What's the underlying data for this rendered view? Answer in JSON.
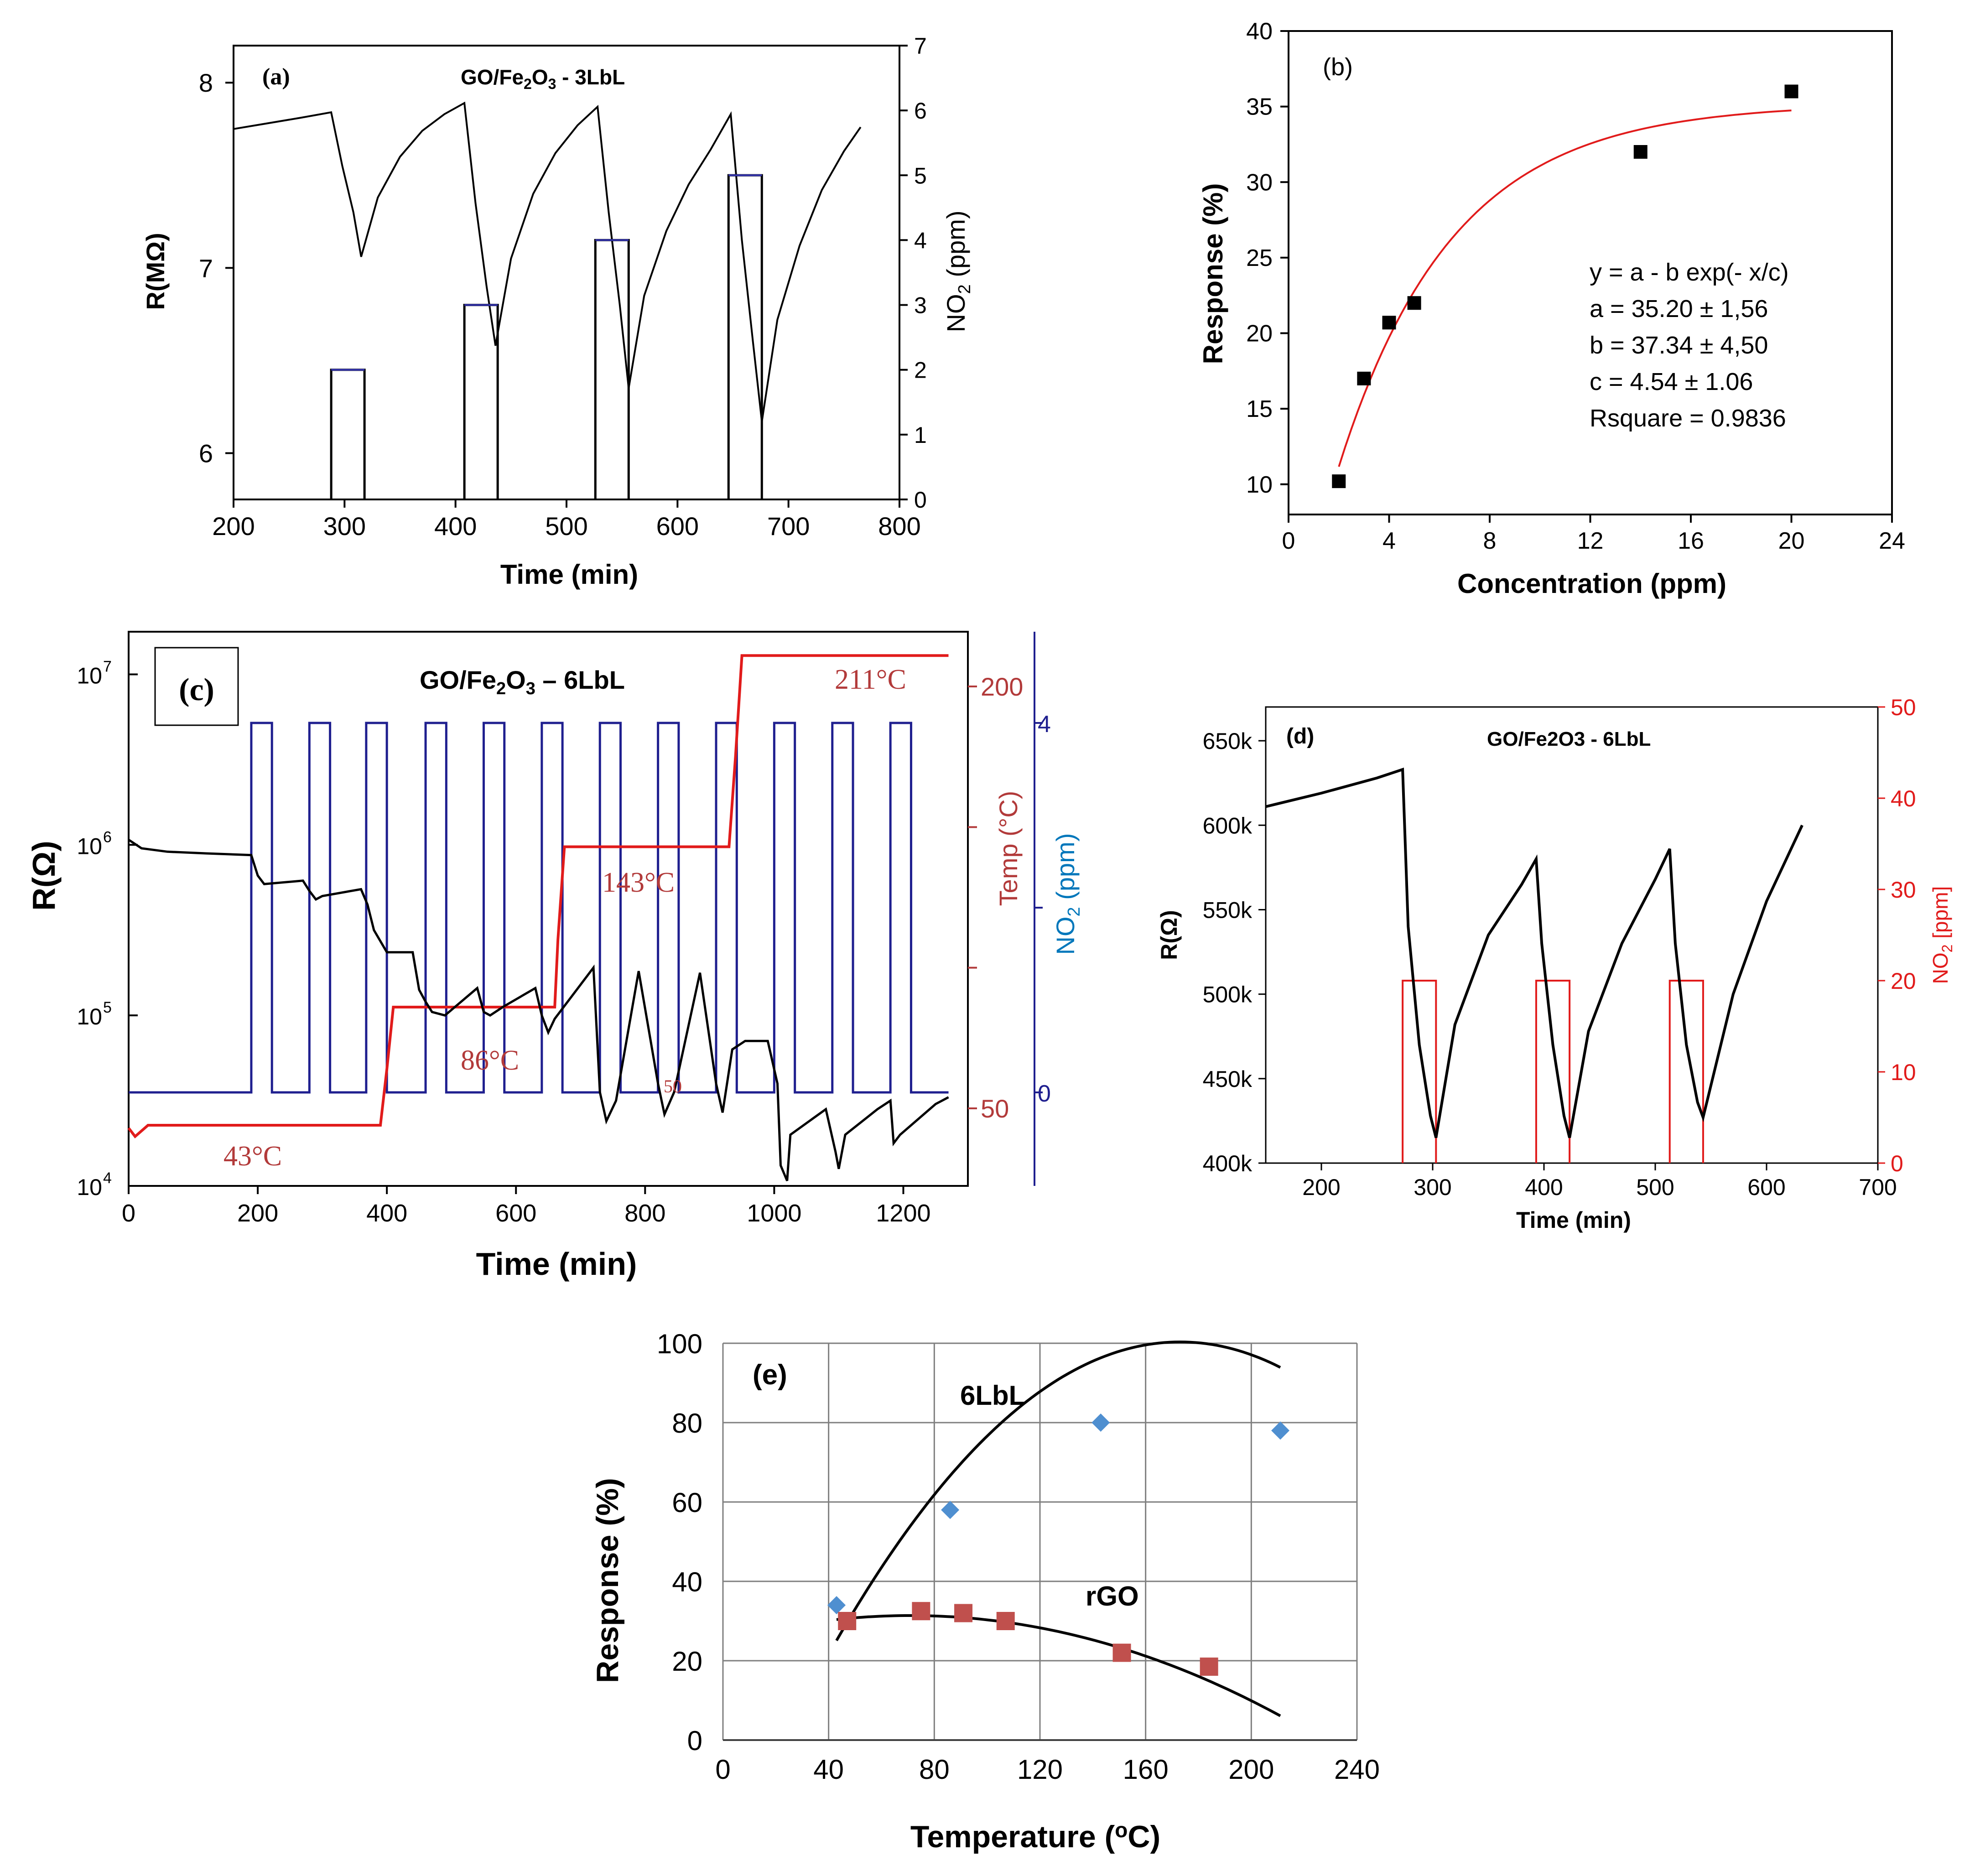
{
  "colors": {
    "black": "#000000",
    "red": "#e11b1b",
    "navy": "#1f1f8f",
    "cyan": "#0077bb",
    "marron": "#b23a3a",
    "grid": "#7f7f7f",
    "blue_marker": "#4f8fd0",
    "red_marker": "#c0504d"
  },
  "chart_data": [
    {
      "id": "a",
      "type": "line",
      "panel_label": "(a)",
      "title": "GO/Fe2O3 - 3LbL",
      "xlabel": "Time (min)",
      "ylabel": "R(MΩ)",
      "y2label": "NO2 (ppm)",
      "xlim": [
        200,
        800
      ],
      "ylim": [
        5.75,
        8.2
      ],
      "y2lim": [
        0,
        7
      ],
      "xticks": [
        "200",
        "300",
        "400",
        "500",
        "600",
        "700",
        "800"
      ],
      "yticks": [
        "6",
        "7",
        "8"
      ],
      "y2ticks": [
        "0",
        "1",
        "2",
        "3",
        "4",
        "5",
        "6",
        "7"
      ],
      "series": [
        {
          "name": "Resistance",
          "axis": "left",
          "x": [
            200,
            230,
            260,
            288,
            298,
            308,
            315,
            330,
            350,
            370,
            390,
            408,
            418,
            428,
            436,
            450,
            470,
            490,
            510,
            528,
            538,
            548,
            556,
            570,
            590,
            610,
            630,
            648,
            658,
            668,
            676,
            690,
            710,
            730,
            750,
            765
          ],
          "y": [
            7.75,
            7.78,
            7.81,
            7.84,
            7.55,
            7.3,
            7.06,
            7.38,
            7.6,
            7.74,
            7.83,
            7.89,
            7.35,
            6.9,
            6.58,
            7.05,
            7.4,
            7.62,
            7.77,
            7.87,
            7.3,
            6.8,
            6.35,
            6.85,
            7.2,
            7.45,
            7.64,
            7.83,
            7.15,
            6.6,
            6.17,
            6.72,
            7.12,
            7.42,
            7.63,
            7.76
          ]
        },
        {
          "name": "NO2 pulses",
          "axis": "right",
          "pulses": [
            {
              "start": 288,
              "end": 318,
              "ppm": 2
            },
            {
              "start": 408,
              "end": 438,
              "ppm": 3
            },
            {
              "start": 526,
              "end": 556,
              "ppm": 4
            },
            {
              "start": 646,
              "end": 676,
              "ppm": 5
            }
          ]
        }
      ]
    },
    {
      "id": "b",
      "type": "scatter",
      "panel_label": "(b)",
      "xlabel": "Concentration (ppm)",
      "ylabel": "Response (%)",
      "xlim": [
        0,
        24
      ],
      "ylim": [
        8,
        40
      ],
      "xticks": [
        "0",
        "4",
        "8",
        "12",
        "16",
        "20",
        "24"
      ],
      "yticks": [
        "10",
        "15",
        "20",
        "25",
        "30",
        "35",
        "40"
      ],
      "x": [
        2,
        3,
        4,
        5,
        14,
        20
      ],
      "y": [
        10.2,
        17,
        20.7,
        22,
        32,
        36
      ],
      "fit": {
        "equation": "y = a - b exp(- x/c)",
        "a": 35.2,
        "b": 37.34,
        "c": 4.54,
        "x_range": [
          2,
          20
        ]
      },
      "annotations": [
        "y = a - b exp(- x/c)",
        "a = 35.20 ± 1,56",
        "b = 37.34 ± 4,50",
        "c = 4.54 ± 1.06",
        "Rsquare = 0.9836"
      ]
    },
    {
      "id": "c",
      "type": "line",
      "panel_label": "(c)",
      "title": "GO/Fe2O3 – 6LbL",
      "xlabel": "Time (min)",
      "ylabel": "R(Ω)",
      "y2label": "Temp (°C)",
      "y3label": "NO2 (ppm)",
      "xlim": [
        0,
        1300
      ],
      "ylim_log10": [
        4,
        7.25
      ],
      "xticks": [
        "0",
        "200",
        "400",
        "600",
        "800",
        "1000",
        "1200"
      ],
      "yticks": [
        {
          "base": "10",
          "exp": "4"
        },
        {
          "base": "10",
          "exp": "5"
        },
        {
          "base": "10",
          "exp": "6"
        },
        {
          "base": "10",
          "exp": "7"
        }
      ],
      "temp_ticks": [
        "50",
        "200"
      ],
      "no2_ticks": [
        "0",
        "4"
      ],
      "temp_labels": [
        "43°C",
        "86°C",
        "143°C",
        "211°C"
      ],
      "stray_label": "50",
      "resistance_log10": {
        "x": [
          0,
          20,
          60,
          120,
          190,
          200,
          210,
          270,
          280,
          290,
          300,
          360,
          370,
          380,
          400,
          440,
          450,
          460,
          470,
          490,
          540,
          550,
          560,
          580,
          630,
          640,
          650,
          660,
          720,
          730,
          740,
          755,
          790,
          820,
          830,
          845,
          885,
          910,
          920,
          935,
          955,
          990,
          1005,
          1010,
          1020,
          1025,
          1080,
          1095,
          1100,
          1110,
          1160,
          1180,
          1185,
          1195,
          1250,
          1270
        ],
        "y": [
          6.03,
          5.98,
          5.96,
          5.95,
          5.94,
          5.82,
          5.77,
          5.79,
          5.73,
          5.68,
          5.7,
          5.74,
          5.65,
          5.5,
          5.37,
          5.37,
          5.15,
          5.08,
          5.02,
          5.0,
          5.16,
          5.02,
          5.0,
          5.05,
          5.16,
          5.0,
          4.9,
          4.98,
          5.28,
          4.55,
          4.38,
          4.5,
          5.26,
          4.6,
          4.42,
          4.55,
          5.25,
          4.6,
          4.43,
          4.8,
          4.85,
          4.85,
          4.6,
          4.12,
          4.03,
          4.3,
          4.45,
          4.2,
          4.1,
          4.3,
          4.45,
          4.5,
          4.25,
          4.3,
          4.48,
          4.52
        ]
      },
      "temperature": {
        "x": [
          0,
          10,
          30,
          80,
          390,
          400,
          410,
          470,
          660,
          665,
          675,
          725,
          930,
          940,
          950,
          1000,
          1270
        ],
        "y": [
          43,
          40,
          44,
          44,
          44,
          64,
          86,
          86,
          86,
          110,
          143,
          143,
          143,
          175,
          211,
          211,
          211
        ]
      },
      "no2_pulses": {
        "ppm": 4,
        "starts": [
          190,
          280,
          368,
          460,
          550,
          640,
          730,
          820,
          910,
          1000,
          1090,
          1180
        ],
        "width": 32
      }
    },
    {
      "id": "d",
      "type": "line",
      "panel_label": "(d)",
      "title": "GO/Fe2O3 - 6LbL",
      "xlabel": "Time (min)",
      "ylabel": "R(Ω)",
      "y2label": "NO2 [ppm]",
      "xlim": [
        150,
        700
      ],
      "ylim": [
        400000,
        670000
      ],
      "y2lim": [
        0,
        50
      ],
      "xticks": [
        "200",
        "300",
        "400",
        "500",
        "600",
        "700"
      ],
      "yticks": [
        "400k",
        "450k",
        "500k",
        "550k",
        "600k",
        "650k"
      ],
      "y2ticks": [
        "0",
        "10",
        "20",
        "30",
        "40",
        "50"
      ],
      "resistance": {
        "x": [
          150,
          200,
          250,
          273,
          278,
          288,
          298,
          303,
          320,
          350,
          380,
          393,
          398,
          408,
          418,
          423,
          440,
          470,
          500,
          513,
          518,
          528,
          538,
          543,
          570,
          600,
          632
        ],
        "y": [
          611000,
          619000,
          628000,
          633000,
          540000,
          470000,
          428000,
          415000,
          482000,
          535000,
          565000,
          580000,
          530000,
          470000,
          428000,
          415000,
          478000,
          530000,
          568000,
          586000,
          530000,
          470000,
          436000,
          427000,
          500000,
          555000,
          600000
        ]
      },
      "no2_pulses": [
        {
          "start": 273,
          "end": 303,
          "ppm": 20
        },
        {
          "start": 393,
          "end": 423,
          "ppm": 20
        },
        {
          "start": 513,
          "end": 543,
          "ppm": 20
        }
      ]
    },
    {
      "id": "e",
      "type": "scatter",
      "panel_label": "(e)",
      "xlabel": "Temperature (°C)",
      "ylabel": "Response (%)",
      "xlim": [
        0,
        240
      ],
      "ylim": [
        0,
        100
      ],
      "xticks": [
        "0",
        "40",
        "80",
        "120",
        "160",
        "200",
        "240"
      ],
      "yticks": [
        "0",
        "20",
        "40",
        "60",
        "80",
        "100"
      ],
      "series": [
        {
          "name": "6LbL",
          "marker": "diamond",
          "x": [
            43,
            86,
            143,
            211
          ],
          "y": [
            34,
            58,
            80,
            78
          ],
          "fit_quadratic": [
            -0.00445,
            1.54,
            -32.9
          ],
          "fit_range": [
            43,
            211
          ]
        },
        {
          "name": "rGO",
          "marker": "square",
          "x": [
            47,
            75,
            91,
            107,
            151,
            184
          ],
          "y": [
            30,
            32.5,
            32,
            30,
            22,
            18.5
          ],
          "fit_quadratic": [
            -0.00129,
            0.1832,
            24.88
          ],
          "fit_range": [
            43,
            211
          ]
        }
      ]
    }
  ]
}
